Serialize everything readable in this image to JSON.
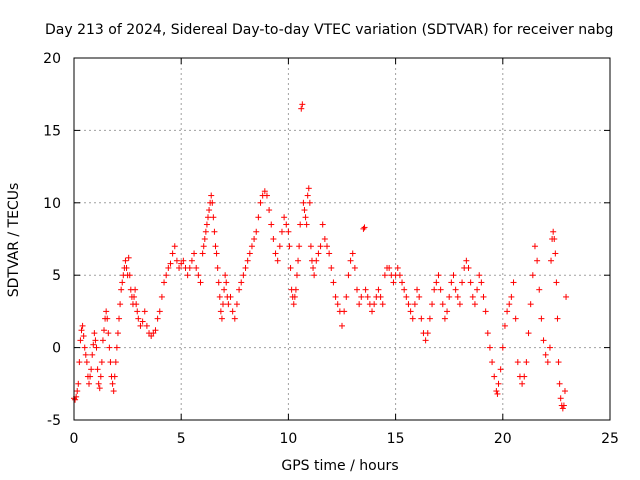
{
  "chart_data": {
    "type": "scatter",
    "title": "Day 213 of 2024, Sidereal Day-to-day VTEC variation (SDTVAR) for receiver nabg",
    "xlabel": "GPS time / hours",
    "ylabel": "SDTVAR / TECUs",
    "xlim": [
      0,
      25
    ],
    "ylim": [
      -5,
      20
    ],
    "xticks": [
      0,
      5,
      10,
      15,
      20,
      25
    ],
    "yticks": [
      -5,
      0,
      5,
      10,
      15,
      20
    ],
    "grid": true,
    "marker": "+",
    "color": "#ff0000",
    "series": [
      {
        "name": "SDTVAR",
        "points": [
          [
            0.0,
            -3.5
          ],
          [
            0.05,
            -3.6
          ],
          [
            0.1,
            -3.4
          ],
          [
            0.15,
            -3.0
          ],
          [
            0.2,
            -2.5
          ],
          [
            0.25,
            -1.0
          ],
          [
            0.3,
            0.5
          ],
          [
            0.35,
            1.2
          ],
          [
            0.4,
            1.5
          ],
          [
            0.45,
            0.8
          ],
          [
            0.5,
            0.0
          ],
          [
            0.55,
            -0.5
          ],
          [
            0.6,
            -1.0
          ],
          [
            0.65,
            -2.0
          ],
          [
            0.7,
            -2.5
          ],
          [
            0.75,
            -2.0
          ],
          [
            0.8,
            -1.5
          ],
          [
            0.85,
            -0.5
          ],
          [
            0.9,
            0.2
          ],
          [
            0.95,
            1.0
          ],
          [
            1.0,
            0.5
          ],
          [
            1.05,
            0.0
          ],
          [
            1.1,
            -1.5
          ],
          [
            1.15,
            -2.5
          ],
          [
            1.2,
            -2.8
          ],
          [
            1.25,
            -2.0
          ],
          [
            1.3,
            -1.0
          ],
          [
            1.35,
            0.5
          ],
          [
            1.4,
            1.2
          ],
          [
            1.45,
            2.0
          ],
          [
            1.5,
            2.5
          ],
          [
            1.55,
            2.0
          ],
          [
            1.6,
            1.0
          ],
          [
            1.65,
            0.0
          ],
          [
            1.7,
            -1.0
          ],
          [
            1.75,
            -2.0
          ],
          [
            1.8,
            -2.5
          ],
          [
            1.85,
            -3.0
          ],
          [
            1.9,
            -2.0
          ],
          [
            1.95,
            -1.0
          ],
          [
            2.0,
            0.0
          ],
          [
            2.05,
            1.0
          ],
          [
            2.1,
            2.0
          ],
          [
            2.15,
            3.0
          ],
          [
            2.2,
            4.0
          ],
          [
            2.25,
            4.5
          ],
          [
            2.3,
            5.0
          ],
          [
            2.35,
            5.5
          ],
          [
            2.4,
            6.0
          ],
          [
            2.45,
            5.5
          ],
          [
            2.5,
            5.0
          ],
          [
            2.55,
            6.2
          ],
          [
            2.6,
            5.0
          ],
          [
            2.65,
            4.0
          ],
          [
            2.7,
            3.5
          ],
          [
            2.75,
            3.0
          ],
          [
            2.8,
            3.5
          ],
          [
            2.85,
            4.0
          ],
          [
            2.9,
            3.0
          ],
          [
            2.95,
            2.5
          ],
          [
            3.0,
            2.0
          ],
          [
            3.1,
            1.5
          ],
          [
            3.2,
            1.8
          ],
          [
            3.3,
            2.5
          ],
          [
            3.4,
            1.5
          ],
          [
            3.5,
            1.0
          ],
          [
            3.6,
            0.8
          ],
          [
            3.7,
            1.0
          ],
          [
            3.8,
            1.2
          ],
          [
            3.9,
            2.0
          ],
          [
            4.0,
            2.5
          ],
          [
            4.1,
            3.5
          ],
          [
            4.2,
            4.5
          ],
          [
            4.3,
            5.0
          ],
          [
            4.4,
            5.5
          ],
          [
            4.5,
            5.8
          ],
          [
            4.6,
            6.5
          ],
          [
            4.7,
            7.0
          ],
          [
            4.8,
            6.0
          ],
          [
            4.9,
            5.5
          ],
          [
            5.0,
            5.8
          ],
          [
            5.1,
            6.0
          ],
          [
            5.2,
            5.5
          ],
          [
            5.3,
            5.0
          ],
          [
            5.4,
            5.5
          ],
          [
            5.5,
            6.0
          ],
          [
            5.6,
            6.5
          ],
          [
            5.7,
            5.5
          ],
          [
            5.8,
            5.0
          ],
          [
            5.9,
            4.5
          ],
          [
            6.0,
            6.5
          ],
          [
            6.05,
            7.0
          ],
          [
            6.1,
            7.5
          ],
          [
            6.15,
            8.0
          ],
          [
            6.2,
            8.5
          ],
          [
            6.25,
            9.0
          ],
          [
            6.3,
            9.5
          ],
          [
            6.35,
            10.0
          ],
          [
            6.4,
            10.5
          ],
          [
            6.45,
            10.0
          ],
          [
            6.5,
            9.0
          ],
          [
            6.55,
            8.0
          ],
          [
            6.6,
            7.0
          ],
          [
            6.65,
            6.5
          ],
          [
            6.7,
            5.5
          ],
          [
            6.75,
            4.5
          ],
          [
            6.8,
            3.5
          ],
          [
            6.85,
            2.5
          ],
          [
            6.9,
            2.0
          ],
          [
            6.95,
            3.0
          ],
          [
            7.0,
            4.0
          ],
          [
            7.05,
            5.0
          ],
          [
            7.1,
            4.5
          ],
          [
            7.15,
            3.5
          ],
          [
            7.2,
            3.0
          ],
          [
            7.3,
            3.5
          ],
          [
            7.4,
            2.5
          ],
          [
            7.5,
            2.0
          ],
          [
            7.6,
            3.0
          ],
          [
            7.7,
            4.0
          ],
          [
            7.8,
            4.5
          ],
          [
            7.9,
            5.0
          ],
          [
            8.0,
            5.5
          ],
          [
            8.1,
            6.0
          ],
          [
            8.2,
            6.5
          ],
          [
            8.3,
            7.0
          ],
          [
            8.4,
            7.5
          ],
          [
            8.5,
            8.0
          ],
          [
            8.6,
            9.0
          ],
          [
            8.7,
            10.0
          ],
          [
            8.8,
            10.5
          ],
          [
            8.9,
            10.8
          ],
          [
            9.0,
            10.5
          ],
          [
            9.1,
            9.5
          ],
          [
            9.2,
            8.5
          ],
          [
            9.3,
            7.5
          ],
          [
            9.4,
            6.5
          ],
          [
            9.5,
            6.0
          ],
          [
            9.6,
            7.0
          ],
          [
            9.7,
            8.0
          ],
          [
            9.8,
            9.0
          ],
          [
            9.9,
            8.5
          ],
          [
            10.0,
            8.0
          ],
          [
            10.05,
            7.0
          ],
          [
            10.1,
            5.5
          ],
          [
            10.15,
            4.0
          ],
          [
            10.2,
            3.5
          ],
          [
            10.25,
            3.0
          ],
          [
            10.3,
            3.5
          ],
          [
            10.35,
            4.0
          ],
          [
            10.4,
            5.0
          ],
          [
            10.45,
            6.0
          ],
          [
            10.5,
            7.0
          ],
          [
            10.55,
            8.5
          ],
          [
            10.6,
            16.5
          ],
          [
            10.65,
            16.8
          ],
          [
            10.7,
            10.0
          ],
          [
            10.75,
            9.5
          ],
          [
            10.8,
            9.0
          ],
          [
            10.85,
            8.5
          ],
          [
            10.9,
            10.5
          ],
          [
            10.95,
            11.0
          ],
          [
            11.0,
            10.0
          ],
          [
            11.05,
            7.0
          ],
          [
            11.1,
            6.0
          ],
          [
            11.15,
            5.5
          ],
          [
            11.2,
            5.0
          ],
          [
            11.3,
            6.0
          ],
          [
            11.4,
            6.5
          ],
          [
            11.5,
            7.0
          ],
          [
            11.6,
            8.5
          ],
          [
            11.7,
            7.5
          ],
          [
            11.8,
            7.0
          ],
          [
            11.9,
            6.5
          ],
          [
            12.0,
            5.5
          ],
          [
            12.1,
            4.5
          ],
          [
            12.2,
            3.5
          ],
          [
            12.3,
            3.0
          ],
          [
            12.4,
            2.5
          ],
          [
            12.5,
            1.5
          ],
          [
            12.6,
            2.5
          ],
          [
            12.7,
            3.5
          ],
          [
            12.8,
            5.0
          ],
          [
            12.9,
            6.0
          ],
          [
            13.0,
            6.5
          ],
          [
            13.1,
            5.5
          ],
          [
            13.2,
            4.0
          ],
          [
            13.3,
            3.0
          ],
          [
            13.4,
            3.5
          ],
          [
            13.5,
            8.2
          ],
          [
            13.55,
            8.3
          ],
          [
            13.6,
            4.0
          ],
          [
            13.7,
            3.5
          ],
          [
            13.8,
            3.0
          ],
          [
            13.9,
            2.5
          ],
          [
            14.0,
            3.0
          ],
          [
            14.1,
            3.5
          ],
          [
            14.2,
            4.0
          ],
          [
            14.3,
            3.5
          ],
          [
            14.4,
            3.0
          ],
          [
            14.5,
            5.0
          ],
          [
            14.6,
            5.5
          ],
          [
            14.7,
            5.5
          ],
          [
            14.8,
            5.0
          ],
          [
            14.9,
            4.5
          ],
          [
            15.0,
            5.0
          ],
          [
            15.1,
            5.5
          ],
          [
            15.2,
            5.0
          ],
          [
            15.3,
            4.5
          ],
          [
            15.4,
            4.0
          ],
          [
            15.5,
            3.5
          ],
          [
            15.6,
            3.0
          ],
          [
            15.7,
            2.5
          ],
          [
            15.8,
            2.0
          ],
          [
            15.9,
            3.0
          ],
          [
            16.0,
            4.0
          ],
          [
            16.1,
            3.5
          ],
          [
            16.2,
            2.0
          ],
          [
            16.3,
            1.0
          ],
          [
            16.4,
            0.5
          ],
          [
            16.5,
            1.0
          ],
          [
            16.6,
            2.0
          ],
          [
            16.7,
            3.0
          ],
          [
            16.8,
            4.0
          ],
          [
            16.9,
            4.5
          ],
          [
            17.0,
            5.0
          ],
          [
            17.1,
            4.0
          ],
          [
            17.2,
            3.0
          ],
          [
            17.3,
            2.0
          ],
          [
            17.4,
            2.5
          ],
          [
            17.5,
            3.5
          ],
          [
            17.6,
            4.5
          ],
          [
            17.7,
            5.0
          ],
          [
            17.8,
            4.0
          ],
          [
            17.9,
            3.5
          ],
          [
            18.0,
            3.0
          ],
          [
            18.1,
            4.5
          ],
          [
            18.2,
            5.5
          ],
          [
            18.3,
            6.0
          ],
          [
            18.4,
            5.5
          ],
          [
            18.5,
            4.5
          ],
          [
            18.6,
            3.5
          ],
          [
            18.7,
            3.0
          ],
          [
            18.8,
            4.0
          ],
          [
            18.9,
            5.0
          ],
          [
            19.0,
            4.5
          ],
          [
            19.1,
            3.5
          ],
          [
            19.2,
            2.5
          ],
          [
            19.3,
            1.0
          ],
          [
            19.4,
            0.0
          ],
          [
            19.5,
            -1.0
          ],
          [
            19.6,
            -2.0
          ],
          [
            19.7,
            -3.0
          ],
          [
            19.75,
            -3.2
          ],
          [
            19.8,
            -2.5
          ],
          [
            19.9,
            -1.5
          ],
          [
            20.0,
            0.0
          ],
          [
            20.1,
            1.5
          ],
          [
            20.2,
            2.5
          ],
          [
            20.3,
            3.0
          ],
          [
            20.4,
            3.5
          ],
          [
            20.5,
            4.5
          ],
          [
            20.6,
            2.0
          ],
          [
            20.7,
            -1.0
          ],
          [
            20.8,
            -2.0
          ],
          [
            20.9,
            -2.5
          ],
          [
            21.0,
            -2.0
          ],
          [
            21.1,
            -1.0
          ],
          [
            21.2,
            1.0
          ],
          [
            21.3,
            3.0
          ],
          [
            21.4,
            5.0
          ],
          [
            21.5,
            7.0
          ],
          [
            21.6,
            6.0
          ],
          [
            21.7,
            4.0
          ],
          [
            21.8,
            2.0
          ],
          [
            21.9,
            0.5
          ],
          [
            22.0,
            -0.5
          ],
          [
            22.1,
            -1.0
          ],
          [
            22.2,
            0.0
          ],
          [
            22.25,
            6.0
          ],
          [
            22.3,
            7.5
          ],
          [
            22.35,
            8.0
          ],
          [
            22.4,
            7.5
          ],
          [
            22.45,
            6.5
          ],
          [
            22.5,
            4.5
          ],
          [
            22.55,
            2.0
          ],
          [
            22.6,
            -1.0
          ],
          [
            22.65,
            -2.5
          ],
          [
            22.7,
            -3.5
          ],
          [
            22.75,
            -4.0
          ],
          [
            22.8,
            -4.2
          ],
          [
            22.85,
            -4.0
          ],
          [
            22.9,
            -3.0
          ],
          [
            22.95,
            3.5
          ]
        ]
      }
    ]
  }
}
